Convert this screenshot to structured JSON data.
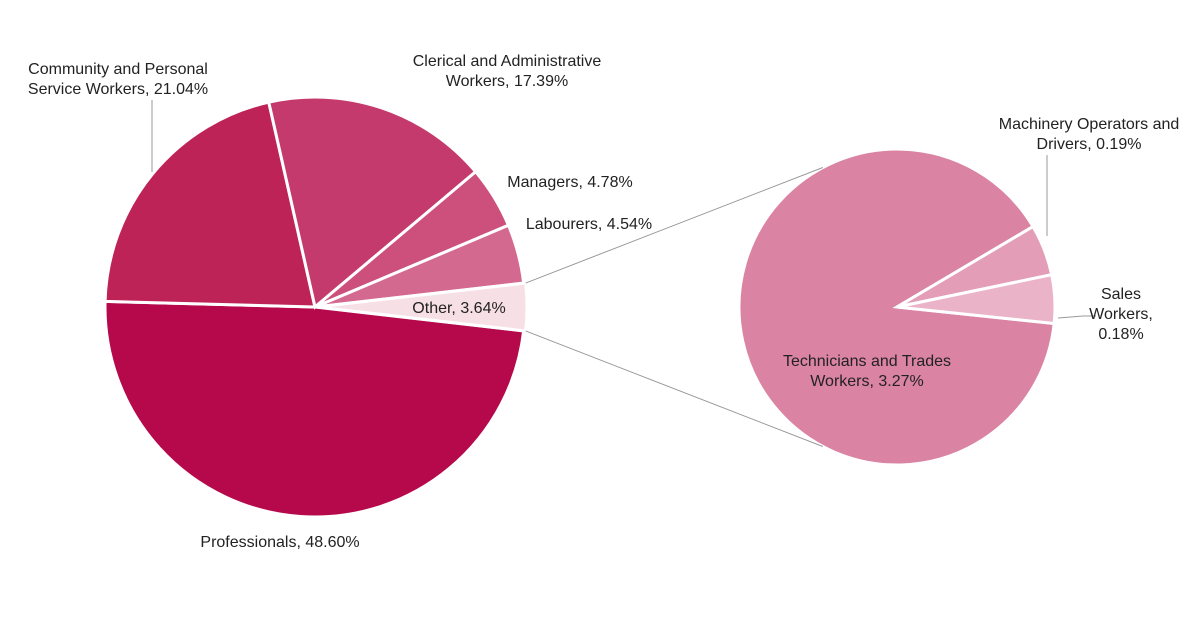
{
  "chart_data": {
    "type": "pie-of-pie",
    "values": [
      48.6,
      21.04,
      17.39,
      4.78,
      4.54,
      3.64
    ],
    "value_labels": [
      [
        "Professionals, 48.60%"
      ],
      [
        "Community and Personal",
        "Service Workers, 21.04%"
      ],
      [
        "Clerical and Administrative",
        "Workers, 17.39%"
      ],
      [
        "Managers, 4.78%"
      ],
      [
        "Labourers, 4.54%"
      ],
      [
        "Other, 3.64%"
      ]
    ],
    "colors": [
      "#b5094b",
      "#be2358",
      "#c53a6c",
      "#cc4f7c",
      "#d4698f",
      "#f7dfe6"
    ],
    "secondary": {
      "values": [
        3.27,
        0.19,
        0.18
      ],
      "value_labels": [
        [
          "Technicians and Trades",
          "Workers, 3.27%"
        ],
        [
          "Machinery Operators and",
          "Drivers, 0.19%"
        ],
        [
          "Sales",
          "Workers,",
          "0.18%"
        ]
      ],
      "colors": [
        "#da83a3",
        "#e39db6",
        "#eab3c7"
      ]
    }
  }
}
